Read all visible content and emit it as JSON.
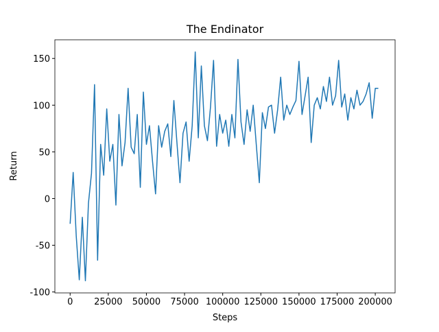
{
  "chart_data": {
    "type": "line",
    "title": "The Endinator",
    "x_label": "Steps",
    "y_label": "Return",
    "x": [
      0,
      2000,
      4000,
      6000,
      8000,
      10000,
      12000,
      14000,
      16000,
      18000,
      20000,
      22000,
      24000,
      26000,
      28000,
      30000,
      32000,
      34000,
      36000,
      38000,
      40000,
      42000,
      44000,
      46000,
      48000,
      50000,
      52000,
      54000,
      56000,
      58000,
      60000,
      62000,
      64000,
      66000,
      68000,
      70000,
      72000,
      74000,
      76000,
      78000,
      80000,
      82000,
      84000,
      86000,
      88000,
      90000,
      92000,
      94000,
      96000,
      98000,
      100000,
      102000,
      104000,
      106000,
      108000,
      110000,
      112000,
      114000,
      116000,
      118000,
      120000,
      122000,
      124000,
      126000,
      128000,
      130000,
      132000,
      134000,
      136000,
      138000,
      140000,
      142000,
      144000,
      146000,
      148000,
      150000,
      152000,
      154000,
      156000,
      158000,
      160000,
      162000,
      164000,
      166000,
      168000,
      170000,
      172000,
      174000,
      176000,
      178000,
      180000,
      182000,
      184000,
      186000,
      188000,
      190000,
      192000,
      194000,
      196000,
      198000,
      200000,
      202000
    ],
    "series": [
      {
        "name": "Return",
        "color": "#1f77b4",
        "values": [
          -27,
          28,
          -40,
          -87,
          -20,
          -88,
          -5,
          27,
          122,
          -66,
          58,
          25,
          96,
          40,
          58,
          -7,
          90,
          35,
          60,
          118,
          55,
          48,
          90,
          12,
          114,
          58,
          78,
          40,
          5,
          78,
          55,
          72,
          80,
          45,
          105,
          60,
          17,
          70,
          82,
          40,
          78,
          157,
          65,
          142,
          78,
          62,
          98,
          148,
          56,
          90,
          70,
          84,
          56,
          90,
          65,
          149,
          82,
          58,
          95,
          72,
          100,
          58,
          17,
          92,
          75,
          98,
          100,
          70,
          95,
          130,
          84,
          100,
          90,
          98,
          105,
          147,
          90,
          110,
          130,
          60,
          100,
          108,
          96,
          120,
          104,
          130,
          100,
          110,
          148,
          98,
          112,
          84,
          108,
          96,
          116,
          100,
          104,
          112,
          124,
          86,
          118,
          118
        ]
      }
    ],
    "xlim": [
      -10000,
      213000
    ],
    "ylim": [
      -101,
      170
    ],
    "xticks": [
      0,
      25000,
      50000,
      75000,
      100000,
      125000,
      150000,
      175000,
      200000
    ],
    "yticks": [
      -100,
      -50,
      0,
      50,
      100,
      150
    ]
  }
}
